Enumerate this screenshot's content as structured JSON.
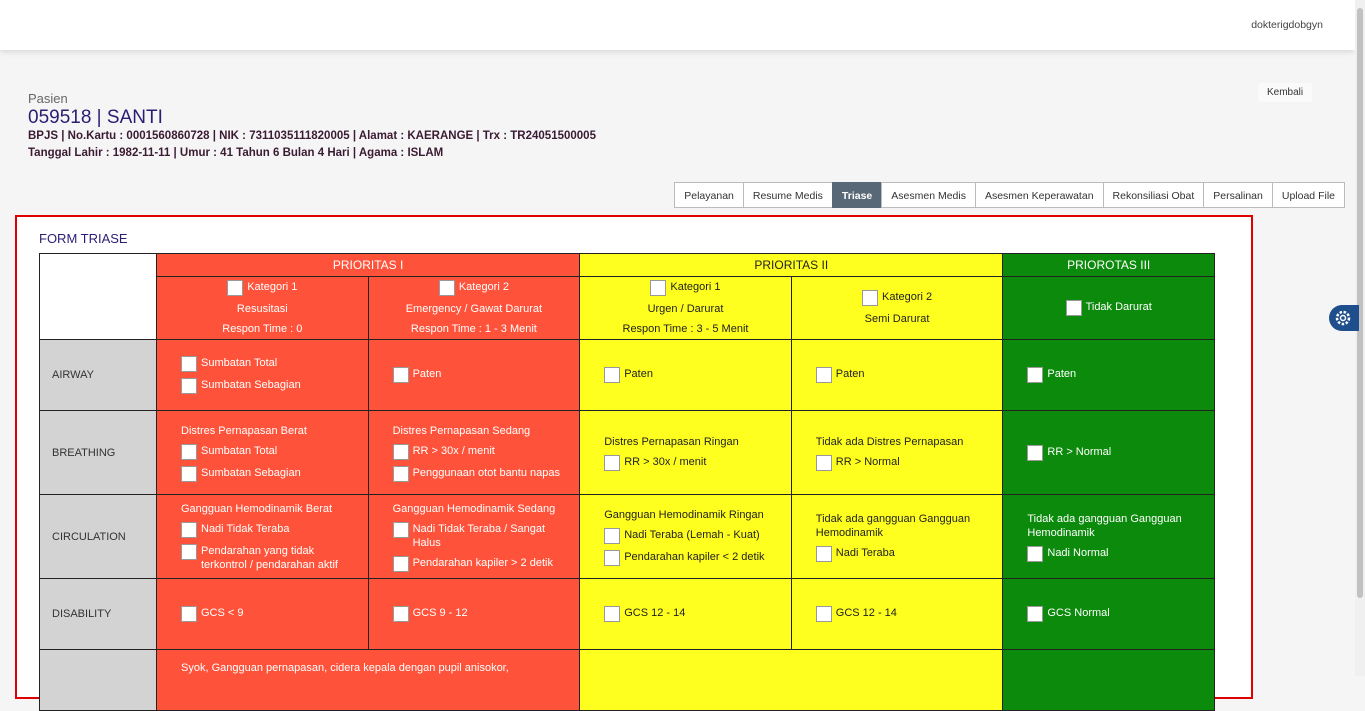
{
  "header": {
    "user": "dokterigdobgyn"
  },
  "patient": {
    "label": "Pasien",
    "title": "059518 | SANTI",
    "line1": "BPJS | No.Kartu : 0001560860728 | NIK : 7311035111820005 | Alamat : KAERANGE | Trx : TR24051500005",
    "line2": "Tanggal Lahir : 1982-11-11 | Umur : 41 Tahun 6 Bulan 4 Hari | Agama : ISLAM"
  },
  "back_button": "Kembali",
  "tabs": [
    {
      "label": "Pelayanan"
    },
    {
      "label": "Resume Medis"
    },
    {
      "label": "Triase",
      "active": true
    },
    {
      "label": "Asesmen Medis"
    },
    {
      "label": "Asesmen Keperawatan"
    },
    {
      "label": "Rekonsiliasi Obat"
    },
    {
      "label": "Persalinan"
    },
    {
      "label": "Upload File"
    }
  ],
  "form": {
    "title": "FORM TRIASE",
    "priorities": [
      {
        "label": "PRIORITAS I",
        "color": "#fe533a",
        "span": 2
      },
      {
        "label": "PRIORITAS II",
        "color": "#ffff1f",
        "span": 2
      },
      {
        "label": "PRIOROTAS III",
        "color": "#0b8a0c",
        "span": 1
      }
    ],
    "categories": [
      [
        {
          "check": true,
          "text": "Kategori 1"
        },
        {
          "text": "Resusitasi"
        },
        {
          "text": "Respon Time : 0"
        }
      ],
      [
        {
          "check": true,
          "text": "Kategori 2"
        },
        {
          "text": "Emergency / Gawat Darurat"
        },
        {
          "text": "Respon Time : 1 - 3 Menit"
        }
      ],
      [
        {
          "check": true,
          "text": "Kategori 1"
        },
        {
          "text": "Urgen / Darurat"
        },
        {
          "text": "Respon Time : 3 - 5 Menit"
        }
      ],
      [
        {
          "check": true,
          "text": "Kategori 2"
        },
        {
          "text": "Semi Darurat"
        }
      ],
      [
        {
          "check": true,
          "text": "Tidak Darurat"
        }
      ]
    ],
    "rows": [
      {
        "label": "AIRWAY",
        "cells": [
          [
            {
              "check": true,
              "text": "Sumbatan Total"
            },
            {
              "check": true,
              "text": "Sumbatan Sebagian"
            }
          ],
          [
            {
              "check": true,
              "text": "Paten"
            }
          ],
          [
            {
              "check": true,
              "text": "Paten"
            }
          ],
          [
            {
              "check": true,
              "text": "Paten"
            }
          ],
          [
            {
              "check": true,
              "text": "Paten"
            }
          ]
        ]
      },
      {
        "label": "BREATHING",
        "cells": [
          [
            {
              "text": "Distres Pernapasan Berat"
            },
            {
              "check": true,
              "text": "Sumbatan Total"
            },
            {
              "check": true,
              "text": "Sumbatan Sebagian"
            }
          ],
          [
            {
              "text": "Distres Pernapasan Sedang"
            },
            {
              "check": true,
              "text": "RR > 30x / menit"
            },
            {
              "check": true,
              "text": "Penggunaan otot bantu napas"
            }
          ],
          [
            {
              "text": "Distres Pernapasan Ringan"
            },
            {
              "check": true,
              "text": "RR > 30x / menit"
            }
          ],
          [
            {
              "text": "Tidak ada Distres Pernapasan"
            },
            {
              "check": true,
              "text": "RR > Normal"
            }
          ],
          [
            {
              "check": true,
              "text": "RR > Normal"
            }
          ]
        ]
      },
      {
        "label": "CIRCULATION",
        "cells": [
          [
            {
              "text": "Gangguan Hemodinamik Berat"
            },
            {
              "check": true,
              "text": "Nadi Tidak Teraba"
            },
            {
              "check": true,
              "text": "Pendarahan yang tidak terkontrol / pendarahan aktif"
            }
          ],
          [
            {
              "text": "Gangguan Hemodinamik Sedang"
            },
            {
              "check": true,
              "text": "Nadi Tidak Teraba / Sangat Halus"
            },
            {
              "check": true,
              "text": "Pendarahan kapiler > 2 detik"
            }
          ],
          [
            {
              "text": "Gangguan Hemodinamik Ringan"
            },
            {
              "check": true,
              "text": "Nadi Teraba (Lemah - Kuat)"
            },
            {
              "check": true,
              "text": "Pendarahan kapiler < 2 detik"
            }
          ],
          [
            {
              "text": "Tidak ada gangguan Gangguan Hemodinamik"
            },
            {
              "check": true,
              "text": "Nadi Teraba"
            }
          ],
          [
            {
              "text": "Tidak ada gangguan Gangguan Hemodinamik"
            },
            {
              "check": true,
              "text": "Nadi Normal"
            }
          ]
        ]
      },
      {
        "label": "DISABILITY",
        "cells": [
          [
            {
              "check": true,
              "text": "GCS < 9"
            }
          ],
          [
            {
              "check": true,
              "text": "GCS 9 - 12"
            }
          ],
          [
            {
              "check": true,
              "text": "GCS 12 - 14"
            }
          ],
          [
            {
              "check": true,
              "text": "GCS 12 - 14"
            }
          ],
          [
            {
              "check": true,
              "text": "GCS Normal"
            }
          ]
        ]
      }
    ],
    "last_row": {
      "text": "Syok, Gangguan pernapasan, cidera kepala dengan pupil anisokor,"
    }
  }
}
